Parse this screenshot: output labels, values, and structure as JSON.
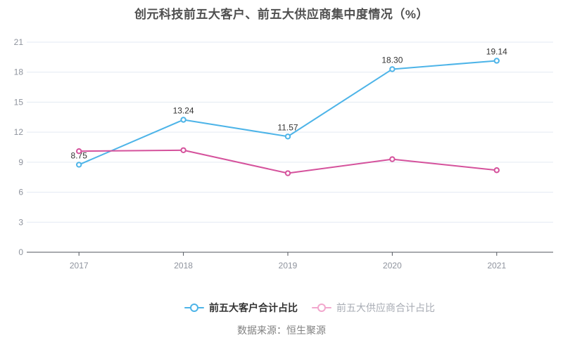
{
  "chart_data": {
    "type": "line",
    "title": "创元科技前五大客户、前五大供应商集中度情况（%）",
    "categories": [
      "2017",
      "2018",
      "2019",
      "2020",
      "2021"
    ],
    "series": [
      {
        "name": "前五大客户合计占比",
        "color": "#4db4e8",
        "values": [
          8.75,
          13.24,
          11.57,
          18.3,
          19.14
        ],
        "labels": [
          "8.75",
          "13.24",
          "11.57",
          "18.30",
          "19.14"
        ],
        "show_labels": true,
        "legend_marker_color": "#4db4e8",
        "legend_text_color": "#333333"
      },
      {
        "name": "前五大供应商合计占比",
        "color": "#d5529c",
        "values": [
          10.1,
          10.2,
          7.9,
          9.3,
          8.2
        ],
        "labels": [],
        "show_labels": false,
        "legend_marker_color": "#f2a7cd",
        "legend_text_color": "#a8acb4"
      }
    ],
    "ylim": [
      0,
      21
    ],
    "yticks": [
      0,
      3,
      6,
      9,
      12,
      15,
      18,
      21
    ],
    "grid": "horizontal-only",
    "legend_position": "bottom-center",
    "colors": {
      "grid": "#e3e9f3",
      "axis": "#50555e",
      "tick_label": "#8e939d",
      "data_label": "#333333"
    }
  },
  "source": {
    "text": "数据来源：恒生聚源"
  }
}
